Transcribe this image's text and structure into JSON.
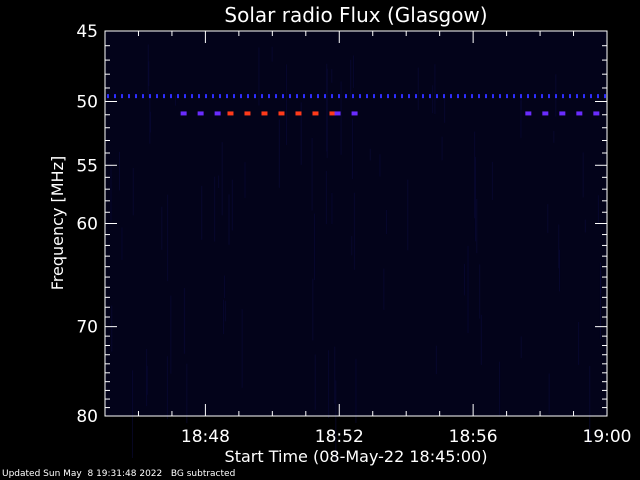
{
  "footer": {
    "updated": "Updated Sun May  8 19:31:48 2022",
    "note": "BG subtracted"
  },
  "colors": {
    "background": "#000000",
    "axes": "#ffffff",
    "plot_bg": "#03031a",
    "weak_band": "#2d2dff",
    "medium_band": "#6a2cff",
    "strong_band": "#ff3a1a"
  },
  "chart_data": {
    "type": "heatmap",
    "title": "Solar radio Flux (Glasgow)",
    "xlabel": "Start Time (08-May-22 18:45:00)",
    "ylabel": "Frequency [MHz]",
    "x_unit": "minutes after 18:45:00",
    "xlim": [
      0,
      15
    ],
    "ylim": [
      80,
      45
    ],
    "y_scale": "log",
    "x_ticks": [
      {
        "value": 3,
        "label": "18:48"
      },
      {
        "value": 7,
        "label": "18:52"
      },
      {
        "value": 11,
        "label": "18:56"
      },
      {
        "value": 15,
        "label": "19:00"
      }
    ],
    "y_ticks": [
      {
        "value": 45,
        "label": "45"
      },
      {
        "value": 50,
        "label": "50"
      },
      {
        "value": 55,
        "label": "55"
      },
      {
        "value": 60,
        "label": "60"
      },
      {
        "value": 70,
        "label": "70"
      },
      {
        "value": 80,
        "label": "80"
      }
    ],
    "features": [
      {
        "name": "dotted band",
        "freq": 49.6,
        "t_start": 0,
        "t_end": 15,
        "level": "weak"
      },
      {
        "name": "band segment",
        "freq": 50.9,
        "t_start": 2.2,
        "t_end": 3.6,
        "level": "medium"
      },
      {
        "name": "band segment",
        "freq": 50.9,
        "t_start": 3.6,
        "t_end": 6.8,
        "level": "strong"
      },
      {
        "name": "band segment",
        "freq": 50.9,
        "t_start": 6.8,
        "t_end": 7.8,
        "level": "medium"
      },
      {
        "name": "band segment",
        "freq": 50.9,
        "t_start": 12.5,
        "t_end": 15,
        "level": "medium"
      }
    ]
  }
}
